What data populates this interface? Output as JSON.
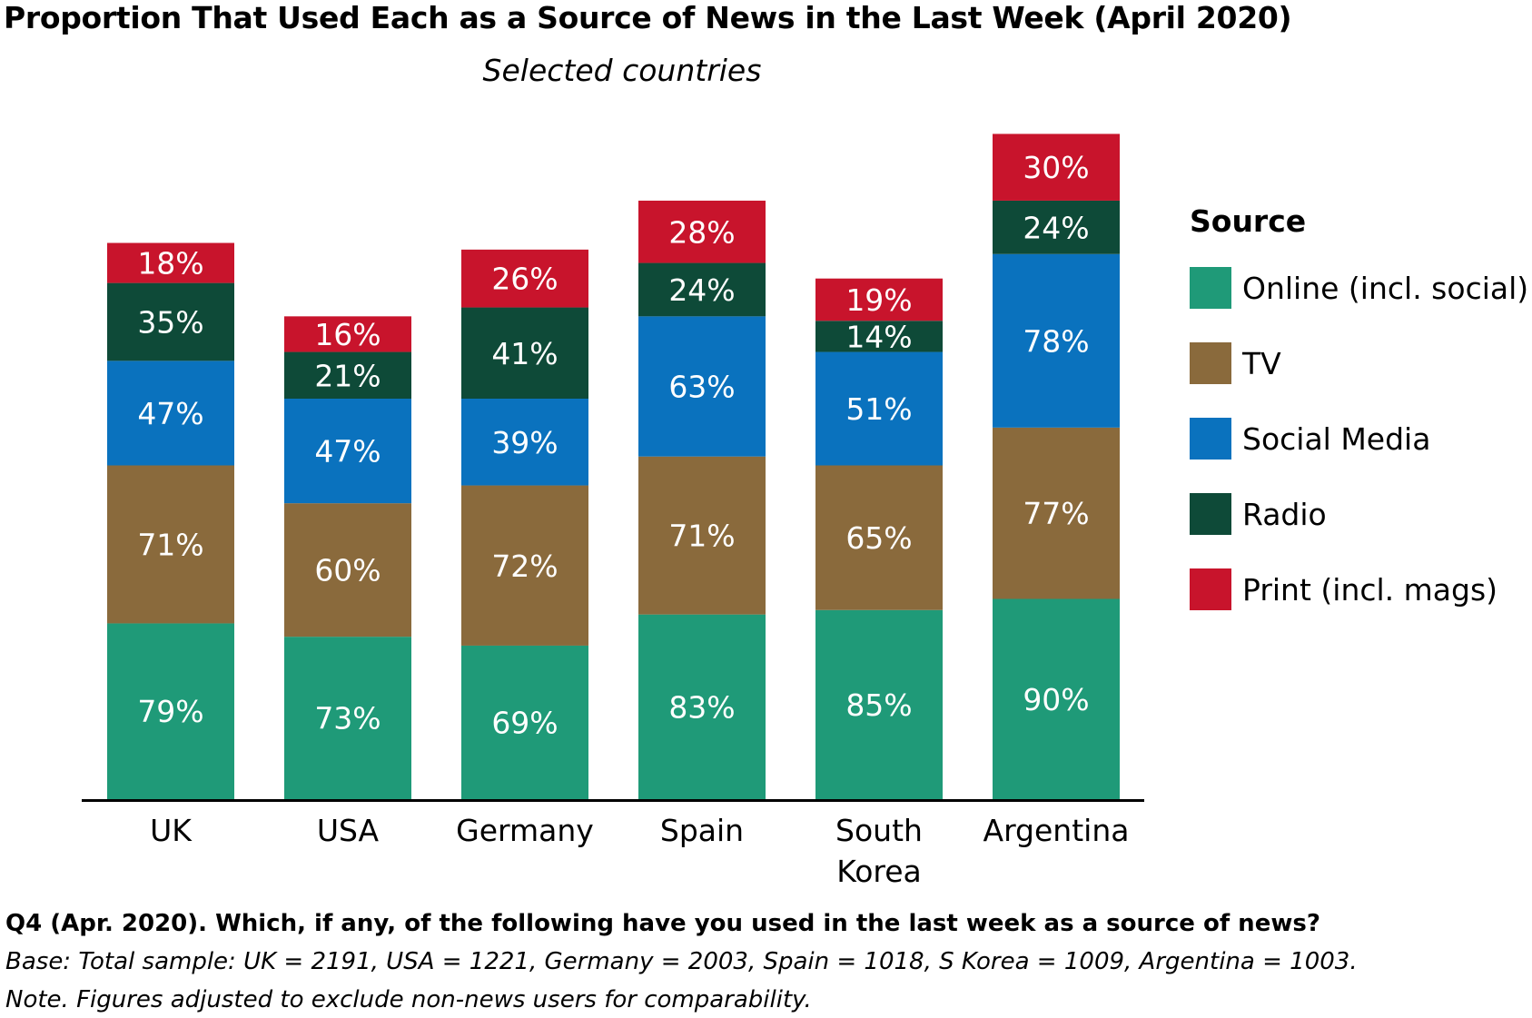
{
  "title": "Proportion That Used Each as a Source of News in the Last Week (April 2020)",
  "subtitle": "Selected countries",
  "colors": {
    "online": "#1f9a78",
    "tv": "#8a6a3c",
    "social": "#0a72be",
    "radio": "#0e4a38",
    "print": "#c8142c"
  },
  "legend": {
    "title": "Source",
    "items": [
      {
        "label": "Online (incl. social)",
        "color": "#1f9a78"
      },
      {
        "label": "TV",
        "color": "#8a6a3c"
      },
      {
        "label": "Social Media",
        "color": "#0a72be"
      },
      {
        "label": "Radio",
        "color": "#0e4a38"
      },
      {
        "label": "Print (incl. mags)",
        "color": "#c8142c"
      }
    ]
  },
  "chart_data": {
    "type": "bar",
    "stacked": true,
    "title": "Proportion That Used Each as a Source of News in the Last Week (April 2020)",
    "subtitle": "Selected countries",
    "categories": [
      "UK",
      "USA",
      "Germany",
      "Spain",
      "South Korea",
      "Argentina"
    ],
    "category_lines": [
      [
        "UK"
      ],
      [
        "USA"
      ],
      [
        "Germany"
      ],
      [
        "Spain"
      ],
      [
        "South",
        "Korea"
      ],
      [
        "Argentina"
      ]
    ],
    "series": [
      {
        "name": "Online (incl. social)",
        "values": [
          79,
          73,
          69,
          83,
          85,
          90
        ],
        "color": "#1f9a78"
      },
      {
        "name": "TV",
        "values": [
          71,
          60,
          72,
          71,
          65,
          77
        ],
        "color": "#8a6a3c"
      },
      {
        "name": "Social Media",
        "values": [
          47,
          47,
          39,
          63,
          51,
          78
        ],
        "color": "#0a72be"
      },
      {
        "name": "Radio",
        "values": [
          35,
          21,
          41,
          24,
          14,
          24
        ],
        "color": "#0e4a38"
      },
      {
        "name": "Print (incl. mags)",
        "values": [
          18,
          16,
          26,
          28,
          19,
          30
        ],
        "color": "#c8142c"
      }
    ],
    "value_suffix": "%",
    "xlabel": "",
    "ylabel": "",
    "legend_position": "right",
    "grid": false
  },
  "footer": {
    "question": "Q4 (Apr. 2020). Which, if any, of the following have you used in the last week as a source of news?",
    "base": "Base: Total sample: UK = 2191, USA = 1221, Germany = 2003, Spain = 1018, S Korea = 1009, Argentina = 1003.",
    "note": "Note. Figures adjusted to exclude non-news users for comparability."
  }
}
